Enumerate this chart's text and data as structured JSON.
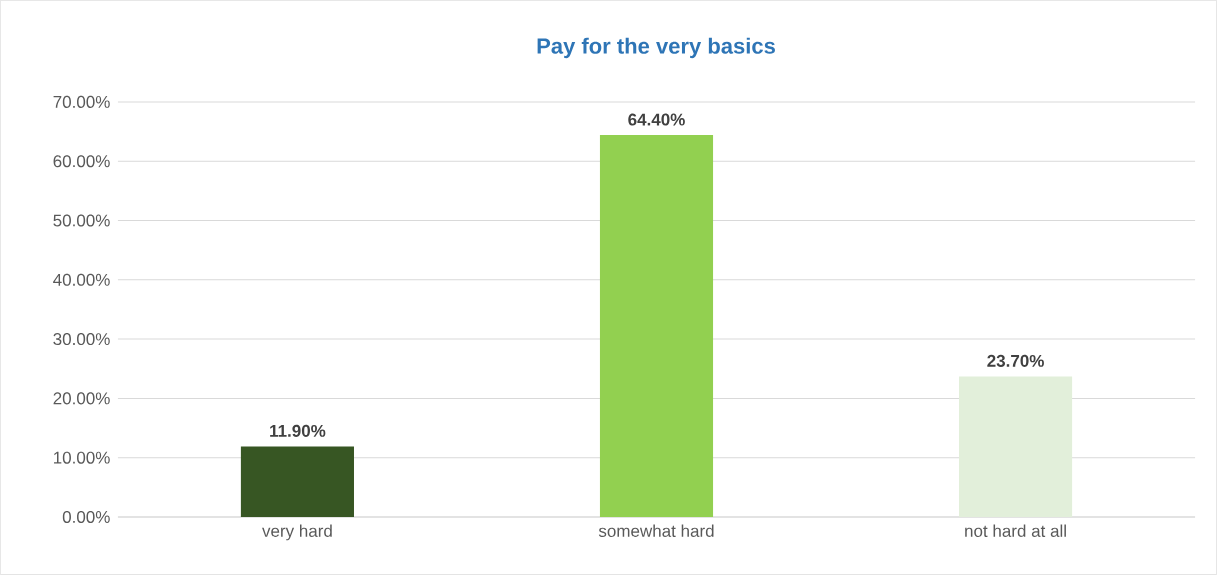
{
  "chart_data": {
    "type": "bar",
    "title": "Pay for the very basics",
    "categories": [
      "very hard",
      "somewhat hard",
      "not hard at all"
    ],
    "values": [
      11.9,
      64.4,
      23.7
    ],
    "colors": [
      "#375623",
      "#92d050",
      "#e2efda"
    ],
    "value_labels": [
      "11.90%",
      "64.40%",
      "23.70%"
    ],
    "ylim": [
      0,
      70
    ],
    "yticks": [
      {
        "value": 0,
        "label": "0.00%"
      },
      {
        "value": 10,
        "label": "10.00%"
      },
      {
        "value": 20,
        "label": "20.00%"
      },
      {
        "value": 30,
        "label": "30.00%"
      },
      {
        "value": 40,
        "label": "40.00%"
      },
      {
        "value": 50,
        "label": "50.00%"
      },
      {
        "value": 60,
        "label": "60.00%"
      },
      {
        "value": 70,
        "label": "70.00%"
      }
    ],
    "grid": "y"
  }
}
